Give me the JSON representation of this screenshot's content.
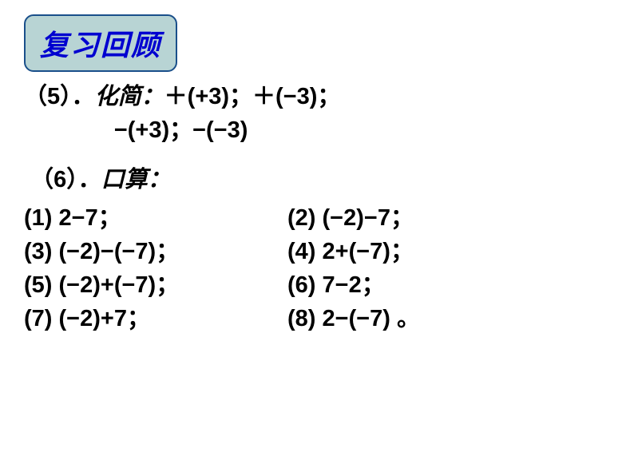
{
  "title": "复习回顾",
  "styling": {
    "title_bg_color": "#b8d4d4",
    "title_border_color": "#1a4f8a",
    "title_text_color": "#0000d0",
    "title_font_size": 36,
    "body_text_color": "#000000",
    "body_font_size": 29,
    "background_color": "#ffffff"
  },
  "problem5": {
    "number": "（5）．",
    "label": "化简：",
    "line1": "＋(+3)；＋(−3)；",
    "line2": "−(+3)；−(−3)"
  },
  "problem6": {
    "number": "（6）．",
    "label": "口算："
  },
  "subs": {
    "s1": "(1) 2−7；",
    "s2": "(2) (−2)−7；",
    "s3": "(3) (−2)−(−7)；",
    "s4": "(4) 2+(−7)；",
    "s5": "(5) (−2)+(−7)；",
    "s6": "(6) 7−2；",
    "s7": "(7) (−2)+7；",
    "s8": "(8) 2−(−7) 。"
  }
}
